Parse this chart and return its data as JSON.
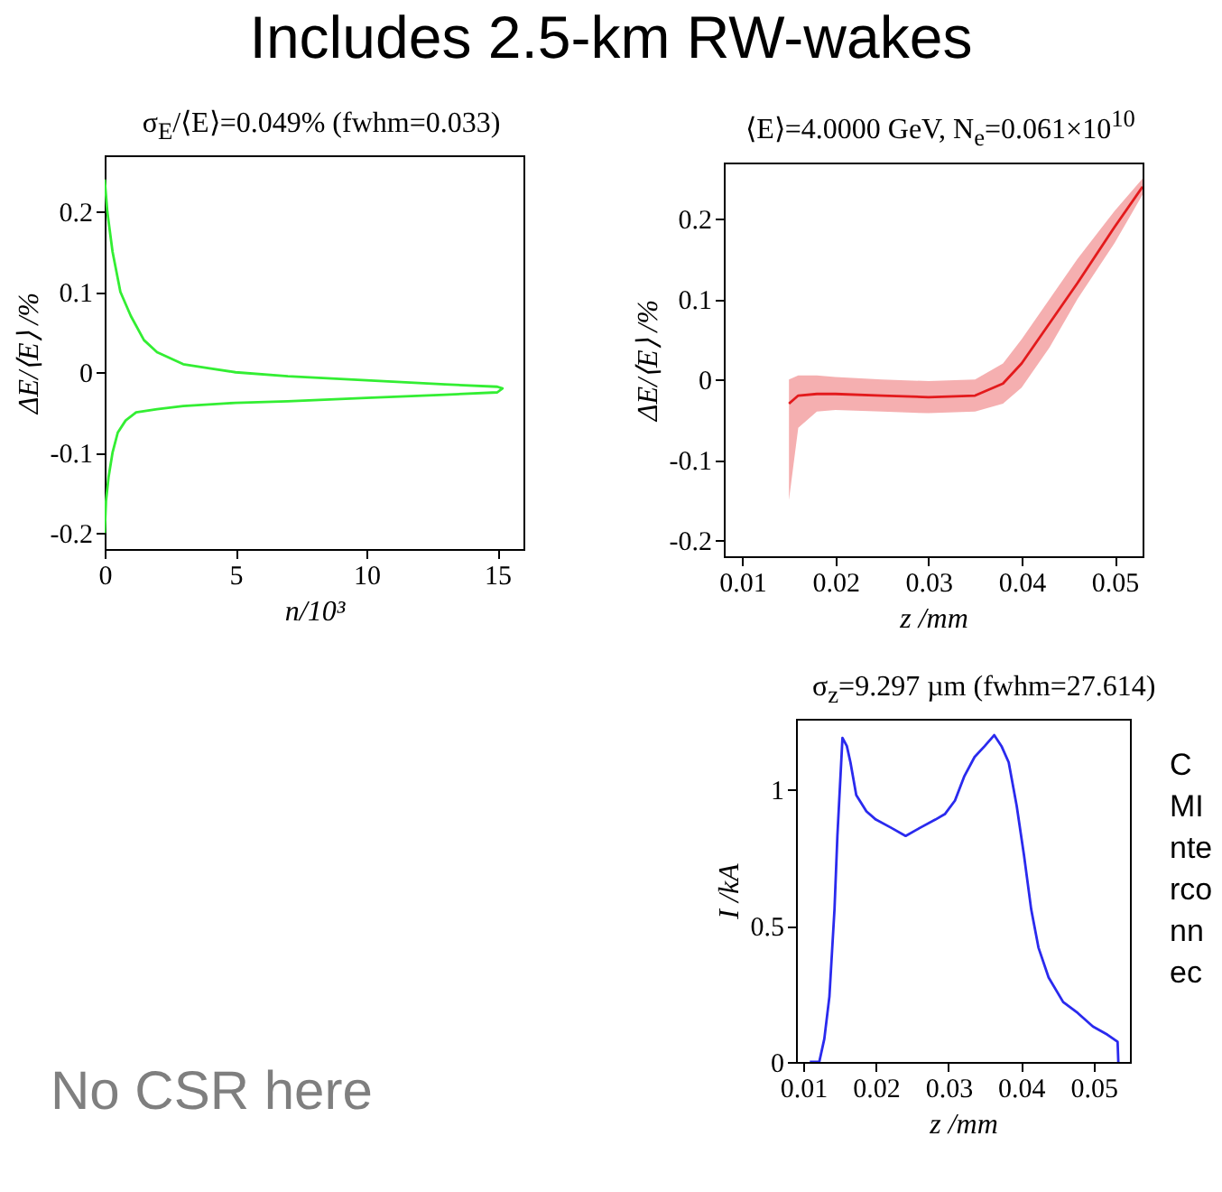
{
  "chart_data": [
    {
      "type": "line",
      "title": "σ$_{E}$/⟨E⟩=0.049% (fwhm=0.033)",
      "xlabel": "n/10³",
      "ylabel": "ΔE/⟨E⟩ /%",
      "annotations": [
        "Includes 2.5-km RW-wakes",
        "No CSR here"
      ],
      "xlim": [
        0,
        16
      ],
      "xticks": [
        0,
        5,
        10,
        15
      ],
      "ylim": [
        -0.22,
        0.27
      ],
      "yticks": [
        -0.2,
        -0.1,
        0,
        0.1,
        0.2
      ],
      "grid": false,
      "marker": "none",
      "series": [
        {
          "color": "#33ee33",
          "x": [
            0,
            0.1,
            0.3,
            0.6,
            1,
            1.5,
            2,
            3,
            4,
            5,
            7,
            10,
            13,
            15,
            15.2,
            15,
            13,
            10,
            7,
            5,
            3,
            2,
            1.2,
            0.8,
            0.5,
            0.3,
            0.15,
            0.05,
            0
          ],
          "values": [
            0.24,
            0.2,
            0.15,
            0.1,
            0.07,
            0.04,
            0.025,
            0.01,
            0.005,
            0,
            -0.005,
            -0.01,
            -0.015,
            -0.018,
            -0.02,
            -0.025,
            -0.028,
            -0.032,
            -0.036,
            -0.038,
            -0.042,
            -0.046,
            -0.05,
            -0.06,
            -0.075,
            -0.1,
            -0.13,
            -0.16,
            -0.2
          ]
        }
      ]
    },
    {
      "type": "line",
      "title": "⟨E⟩=4.0000 GeV, N$_{e}$=0.061×10$^{10}$",
      "xlabel": "z /mm",
      "ylabel": "ΔE/⟨E⟩ /%",
      "xlim": [
        0.008,
        0.053
      ],
      "xticks": [
        0.01,
        0.02,
        0.03,
        0.04,
        0.05
      ],
      "ylim": [
        -0.22,
        0.27
      ],
      "yticks": [
        -0.2,
        -0.1,
        0,
        0.1,
        0.2
      ],
      "grid": false,
      "marker": "none",
      "series": [
        {
          "color": "#e31a1c",
          "x": [
            0.015,
            0.016,
            0.018,
            0.02,
            0.025,
            0.03,
            0.035,
            0.038,
            0.04,
            0.043,
            0.046,
            0.05,
            0.053
          ],
          "values": [
            -0.03,
            -0.02,
            -0.018,
            -0.018,
            -0.02,
            -0.022,
            -0.02,
            -0.005,
            0.02,
            0.07,
            0.12,
            0.19,
            0.24
          ],
          "lower": [
            -0.15,
            -0.06,
            -0.04,
            -0.038,
            -0.04,
            -0.042,
            -0.04,
            -0.03,
            -0.01,
            0.04,
            0.1,
            0.17,
            0.23
          ],
          "upper": [
            0,
            0.005,
            0.005,
            0.003,
            0,
            -0.002,
            0,
            0.02,
            0.05,
            0.1,
            0.15,
            0.21,
            0.25
          ]
        }
      ]
    },
    {
      "type": "line",
      "title": "σ$_{z}$=9.297 µm (fwhm=27.614)",
      "xlabel": "z /mm",
      "ylabel": "I /kA",
      "annotations": [
        "CMInterconnec"
      ],
      "xlim": [
        0.009,
        0.055
      ],
      "xticks": [
        0.01,
        0.02,
        0.03,
        0.04,
        0.05
      ],
      "ylim": [
        0,
        1.26
      ],
      "yticks": [
        0,
        0.5,
        1
      ],
      "grid": false,
      "marker": "none",
      "series": [
        {
          "color": "#2a2aee",
          "x": [
            0.0109,
            0.0122,
            0.0129,
            0.0136,
            0.0143,
            0.0147,
            0.0154,
            0.016,
            0.0165,
            0.0173,
            0.0187,
            0.02,
            0.0221,
            0.0241,
            0.0261,
            0.0282,
            0.0295,
            0.0309,
            0.0322,
            0.0336,
            0.035,
            0.0363,
            0.0373,
            0.0383,
            0.0394,
            0.0404,
            0.0414,
            0.0424,
            0.0438,
            0.0458,
            0.0478,
            0.0499,
            0.0519,
            0.0533,
            0.0534
          ],
          "values": [
            0,
            0,
            0.085,
            0.24,
            0.56,
            0.83,
            1.19,
            1.16,
            1.1,
            0.98,
            0.92,
            0.89,
            0.86,
            0.83,
            0.86,
            0.89,
            0.91,
            0.96,
            1.05,
            1.12,
            1.16,
            1.2,
            1.16,
            1.1,
            0.94,
            0.76,
            0.56,
            0.42,
            0.31,
            0.22,
            0.18,
            0.13,
            0.1,
            0.074,
            0
          ]
        }
      ]
    }
  ]
}
